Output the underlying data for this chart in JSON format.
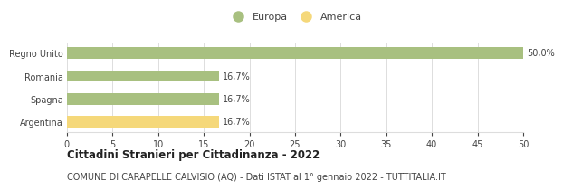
{
  "categories": [
    "Argentina",
    "Spagna",
    "Romania",
    "Regno Unito"
  ],
  "values": [
    16.7,
    16.7,
    16.7,
    50.0
  ],
  "bar_colors": [
    "#f5d87a",
    "#a8c080",
    "#a8c080",
    "#a8c080"
  ],
  "legend_items": [
    {
      "label": "Europa",
      "color": "#a8c080"
    },
    {
      "label": "America",
      "color": "#f5d87a"
    }
  ],
  "labels": [
    "16,7%",
    "16,7%",
    "16,7%",
    "50,0%"
  ],
  "xlim": [
    0,
    50
  ],
  "xticks": [
    0,
    5,
    10,
    15,
    20,
    25,
    30,
    35,
    40,
    45,
    50
  ],
  "title": "Cittadini Stranieri per Cittadinanza - 2022",
  "subtitle": "COMUNE DI CARAPELLE CALVISIO (AQ) - Dati ISTAT al 1° gennaio 2022 - TUTTITALIA.IT",
  "title_fontsize": 8.5,
  "subtitle_fontsize": 7,
  "label_fontsize": 7,
  "tick_fontsize": 7,
  "legend_fontsize": 8,
  "bar_height": 0.5,
  "grid_color": "#dddddd",
  "bg_color": "#ffffff",
  "text_color": "#444444"
}
